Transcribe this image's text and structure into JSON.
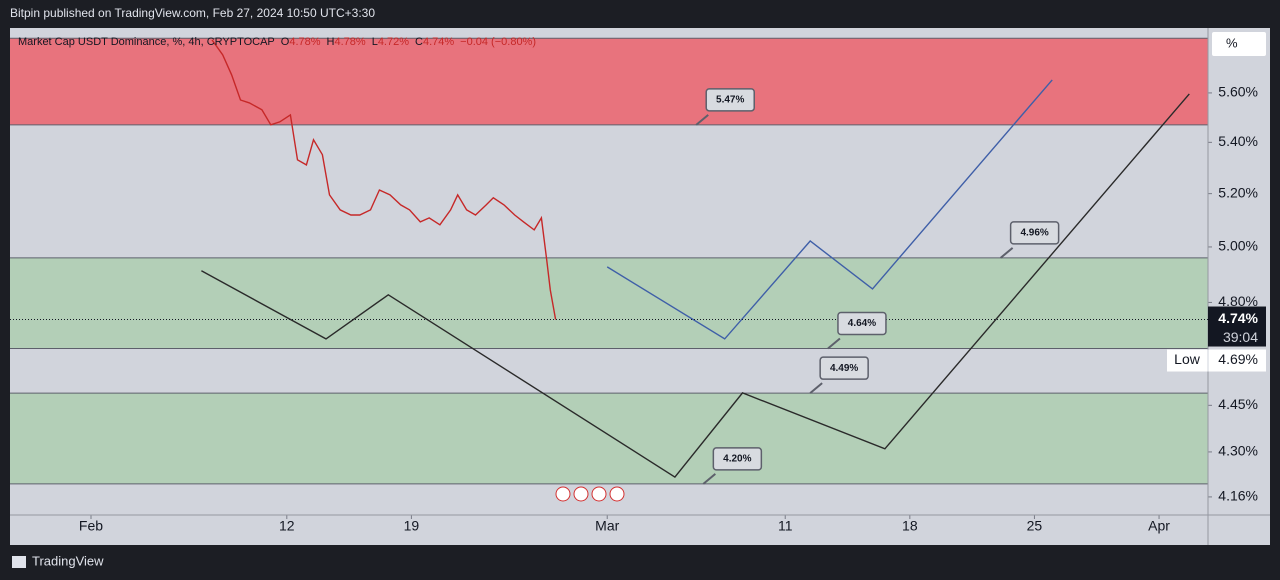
{
  "header": "Bitpin published on TradingView.com, Feb 27, 2024 10:50 UTC+3:30",
  "footer": "TradingView",
  "chart_data": {
    "type": "line",
    "title": "Market Cap USDT Dominance, %, 4h, CRYPTOCAP",
    "ohlc": [
      {
        "key": "O",
        "value": 4.78,
        "label": "4.78%"
      },
      {
        "key": "H",
        "value": 4.78,
        "label": "4.78%"
      },
      {
        "key": "L",
        "value": 4.72,
        "label": "4.72%"
      },
      {
        "key": "C",
        "value": 4.74,
        "label": "4.74%"
      }
    ],
    "change": "−0.04 (−0.80%)",
    "scale_unit": "%",
    "log_scale": true,
    "xlim": [
      -4.55,
      62.75
    ],
    "xticks": [
      {
        "value": 0,
        "label": "Feb"
      },
      {
        "value": 11,
        "label": "12"
      },
      {
        "value": 18,
        "label": "19"
      },
      {
        "value": 29,
        "label": "Mar"
      },
      {
        "value": 39,
        "label": "11"
      },
      {
        "value": 46,
        "label": "18"
      },
      {
        "value": 53,
        "label": "25"
      },
      {
        "value": 60,
        "label": "Apr"
      }
    ],
    "ylim": [
      4.105,
      5.874
    ],
    "yticks": [
      {
        "value": 4.16,
        "label": "4.16%"
      },
      {
        "value": 4.3,
        "label": "4.30%"
      },
      {
        "value": 4.45,
        "label": "4.45%"
      },
      {
        "value": 4.8,
        "label": "4.80%"
      },
      {
        "value": 5.0,
        "label": "5.00%"
      },
      {
        "value": 5.2,
        "label": "5.20%"
      },
      {
        "value": 5.4,
        "label": "5.40%"
      },
      {
        "value": 5.6,
        "label": "5.60%"
      }
    ],
    "zones": [
      {
        "from": 5.47,
        "to": 5.83,
        "color": "#e8737d"
      },
      {
        "from": 4.64,
        "to": 4.96,
        "color": "#b3cfb7"
      },
      {
        "from": 4.2,
        "to": 4.49,
        "color": "#b3cfb7"
      }
    ],
    "series": [
      {
        "color": "#c62828",
        "x": [
          6.8,
          7.4,
          7.9,
          8.4,
          8.9,
          9.6,
          10.1,
          10.6,
          11.2,
          11.6,
          12.1,
          12.5,
          13.0,
          13.4,
          14.0,
          14.6,
          15.1,
          15.7,
          16.2,
          16.8,
          17.4,
          17.9,
          18.5,
          19.0,
          19.6,
          20.2,
          20.6,
          21.1,
          21.6,
          22.2,
          22.6,
          23.2,
          23.8,
          24.3,
          24.9,
          25.3,
          25.6,
          25.8,
          26.1
        ],
        "values": [
          5.823,
          5.759,
          5.675,
          5.571,
          5.559,
          5.531,
          5.47,
          5.482,
          5.51,
          5.331,
          5.311,
          5.41,
          5.351,
          5.195,
          5.138,
          5.119,
          5.119,
          5.138,
          5.214,
          5.195,
          5.157,
          5.138,
          5.093,
          5.108,
          5.082,
          5.138,
          5.195,
          5.138,
          5.119,
          5.157,
          5.184,
          5.157,
          5.119,
          5.093,
          5.063,
          5.108,
          4.953,
          4.844,
          4.74
        ]
      },
      {
        "color": "#3f5fa8",
        "x": [
          29.0,
          35.6,
          40.4,
          43.9,
          54.0
        ],
        "values": [
          4.927,
          4.673,
          5.022,
          4.848,
          5.654
        ]
      },
      {
        "color": "#2a2a2a",
        "x": [
          6.2,
          13.2,
          16.7,
          32.8,
          36.6,
          44.6,
          61.7
        ],
        "values": [
          4.913,
          4.673,
          4.827,
          4.221,
          4.491,
          4.31,
          5.596
        ]
      }
    ],
    "annotations": [
      {
        "value": 5.47,
        "label": "5.47%",
        "x": 34.0
      },
      {
        "value": 4.96,
        "label": "4.96%",
        "x": 51.1
      },
      {
        "value": 4.64,
        "label": "4.64%",
        "x": 41.4
      },
      {
        "value": 4.49,
        "label": "4.49%",
        "x": 40.4
      },
      {
        "value": 4.2,
        "label": "4.20%",
        "x": 34.4
      }
    ],
    "last": {
      "value": 4.74,
      "label": "4.74%",
      "countdown": "39:04"
    },
    "low": {
      "name": "Low",
      "value": 4.69,
      "label": "4.69%"
    }
  }
}
